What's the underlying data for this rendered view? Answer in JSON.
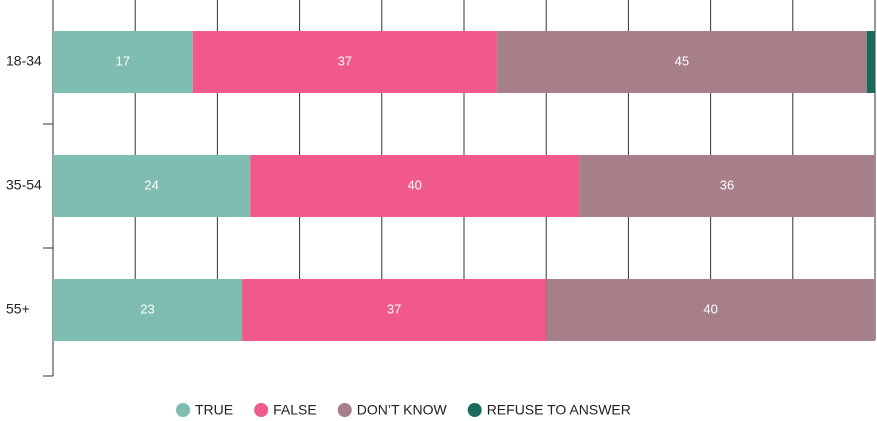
{
  "chart_data": {
    "type": "stacked_barh",
    "categories": [
      "18-34",
      "35-54",
      "55+"
    ],
    "series": [
      {
        "name": "TRUE",
        "color": "#80bdb1",
        "values": [
          17,
          24,
          23
        ]
      },
      {
        "name": "FALSE",
        "color": "#f0598a",
        "values": [
          37,
          40,
          37
        ]
      },
      {
        "name": "DON’T KNOW",
        "color": "#a67f88",
        "values": [
          45,
          36,
          40
        ]
      },
      {
        "name": "REFUSE TO ANSWER",
        "color": "#1a6b5e",
        "values": [
          1,
          null,
          null
        ]
      }
    ],
    "xlim": [
      0,
      100
    ],
    "xticks": [
      0,
      10,
      20,
      30,
      40,
      50,
      60,
      70,
      80,
      90,
      100
    ],
    "grid": true,
    "legend": "bottom"
  }
}
